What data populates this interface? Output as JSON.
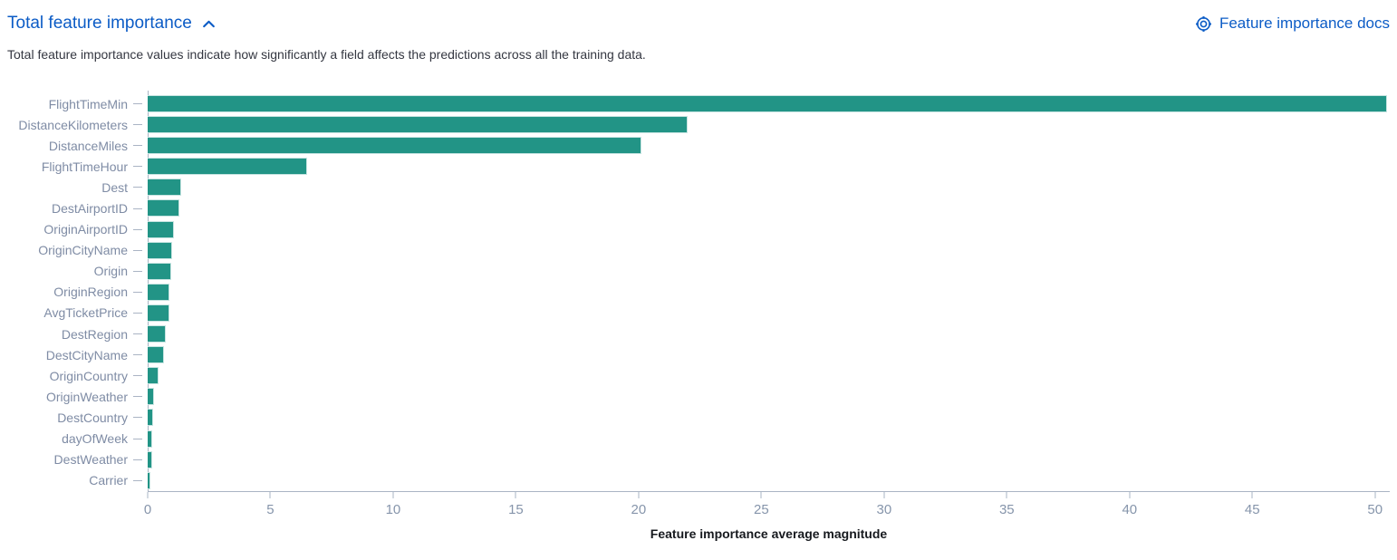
{
  "header": {
    "title": "Total feature importance",
    "docs_link": "Feature importance docs"
  },
  "description": "Total feature importance values indicate how significantly a field affects the predictions across all the training data.",
  "icons": {
    "collapse": "chevron-up",
    "docs": "lifebuoy"
  },
  "colors": {
    "link_blue": "#0c5cc6",
    "bar_teal": "#229486",
    "axis_line": "#aab4c4",
    "tick_label": "#8695ab",
    "y_label": "#7f8ca5",
    "body_text": "#343741",
    "axis_title": "#16191e"
  },
  "chart_data": {
    "type": "bar",
    "orientation": "horizontal",
    "title": "Total feature importance",
    "xlabel": "Feature importance average magnitude",
    "ylabel": "",
    "xlim": [
      0,
      50.6
    ],
    "xticks": [
      0,
      5,
      10,
      15,
      20,
      25,
      30,
      35,
      40,
      45,
      50
    ],
    "grid": false,
    "legend": "none",
    "bar_color": "#229486",
    "categories": [
      "FlightTimeMin",
      "DistanceKilometers",
      "DistanceMiles",
      "FlightTimeHour",
      "Dest",
      "DestAirportID",
      "OriginAirportID",
      "OriginCityName",
      "Origin",
      "OriginRegion",
      "AvgTicketPrice",
      "DestRegion",
      "DestCityName",
      "OriginCountry",
      "OriginWeather",
      "DestCountry",
      "dayOfWeek",
      "DestWeather",
      "Carrier"
    ],
    "values": [
      50.5,
      22.0,
      20.1,
      6.5,
      1.35,
      1.3,
      1.06,
      1.0,
      0.97,
      0.9,
      0.88,
      0.73,
      0.65,
      0.44,
      0.24,
      0.22,
      0.2,
      0.18,
      0.1
    ]
  }
}
